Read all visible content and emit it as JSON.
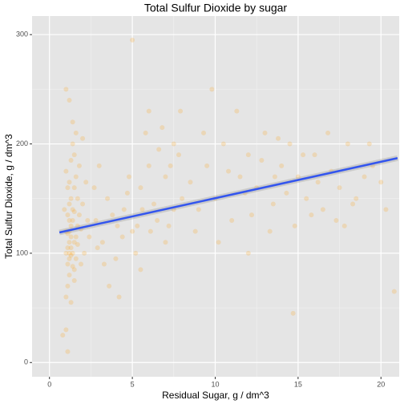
{
  "chart_data": {
    "type": "scatter",
    "title": "Total Sulfur Dioxide by sugar",
    "x_label": "Residual Sugar, g / dm^3",
    "y_label": "Total Sulfur Dioxide, g / dm^3",
    "xlim": [
      -1.05,
      21.1
    ],
    "ylim": [
      -13,
      317
    ],
    "xticks": [
      0,
      5,
      10,
      15,
      20
    ],
    "yticks": [
      0,
      100,
      200,
      300
    ],
    "grid": true,
    "color": "#ff9900",
    "x": [
      1.0,
      1.2,
      1.4,
      1.1,
      1.3,
      1.5,
      1.2,
      1.6,
      1.0,
      1.4,
      1.1,
      1.3,
      1.7,
      1.2,
      1.5,
      1.0,
      1.4,
      1.2,
      1.6,
      1.1,
      1.3,
      1.8,
      1.5,
      1.2,
      1.0,
      1.4,
      1.1,
      1.3,
      1.6,
      1.2,
      0.9,
      1.5,
      1.3,
      1.1,
      1.7,
      1.2,
      1.4,
      1.0,
      1.6,
      1.3,
      1.5,
      1.2,
      1.1,
      1.8,
      1.4,
      1.0,
      1.3,
      1.7,
      1.2,
      1.5,
      0.8,
      1.9,
      2.0,
      2.1,
      2.2,
      1.9,
      2.3,
      2.0,
      2.4,
      1.1,
      2.8,
      3.2,
      3.5,
      4.0,
      4.5,
      5.0,
      5.5,
      6.0,
      6.5,
      7.0,
      7.5,
      8.0,
      3.0,
      4.2,
      5.2,
      5.8,
      6.3,
      7.2,
      7.8,
      3.8,
      4.8,
      5.5,
      6.8,
      7.5,
      3.3,
      4.1,
      6.1,
      7.9,
      5.0,
      2.7,
      6.6,
      7.0,
      4.4,
      5.6,
      3.6,
      7.3,
      6.0,
      2.9,
      4.7,
      5.3,
      8.5,
      9.0,
      9.5,
      10.0,
      10.5,
      11.0,
      11.5,
      12.0,
      12.5,
      13.0,
      13.5,
      14.0,
      14.5,
      15.0,
      15.5,
      16.0,
      16.5,
      17.0,
      17.5,
      18.0,
      18.5,
      19.0,
      19.5,
      20.0,
      20.8,
      8.8,
      9.3,
      10.2,
      10.8,
      11.3,
      12.2,
      12.8,
      13.3,
      13.8,
      14.3,
      14.8,
      15.3,
      16.2,
      17.3,
      18.3,
      19.3,
      20.3,
      9.8,
      11.8,
      13.6,
      15.8,
      16.8,
      17.8,
      12.0,
      14.7
    ],
    "values": [
      120,
      95,
      140,
      160,
      105,
      85,
      130,
      115,
      175,
      200,
      70,
      150,
      125,
      110,
      190,
      60,
      100,
      145,
      170,
      90,
      125,
      135,
      110,
      80,
      30,
      220,
      135,
      115,
      95,
      165,
      140,
      75,
      185,
      105,
      150,
      120,
      130,
      100,
      210,
      55,
      160,
      100,
      118,
      180,
      88,
      250,
      98,
      108,
      240,
      138,
      25,
      122,
      145,
      100,
      165,
      90,
      130,
      205,
      115,
      10,
      130,
      110,
      150,
      95,
      140,
      120,
      160,
      180,
      130,
      170,
      200,
      150,
      180,
      60,
      100,
      210,
      145,
      125,
      190,
      135,
      170,
      85,
      215,
      140,
      90,
      125,
      120,
      230,
      295,
      160,
      195,
      110,
      115,
      140,
      70,
      180,
      230,
      105,
      155,
      125,
      165,
      140,
      180,
      150,
      200,
      130,
      170,
      190,
      160,
      210,
      145,
      180,
      200,
      170,
      150,
      190,
      140,
      175,
      160,
      200,
      150,
      170,
      180,
      165,
      65,
      120,
      210,
      110,
      175,
      230,
      135,
      185,
      120,
      205,
      155,
      125,
      190,
      165,
      130,
      145,
      200,
      140,
      250,
      155,
      170,
      135,
      210,
      125,
      100,
      45
    ],
    "trend": {
      "x": [
        0.6,
        21
      ],
      "values": [
        119,
        187
      ],
      "color": "#3355ee"
    }
  }
}
